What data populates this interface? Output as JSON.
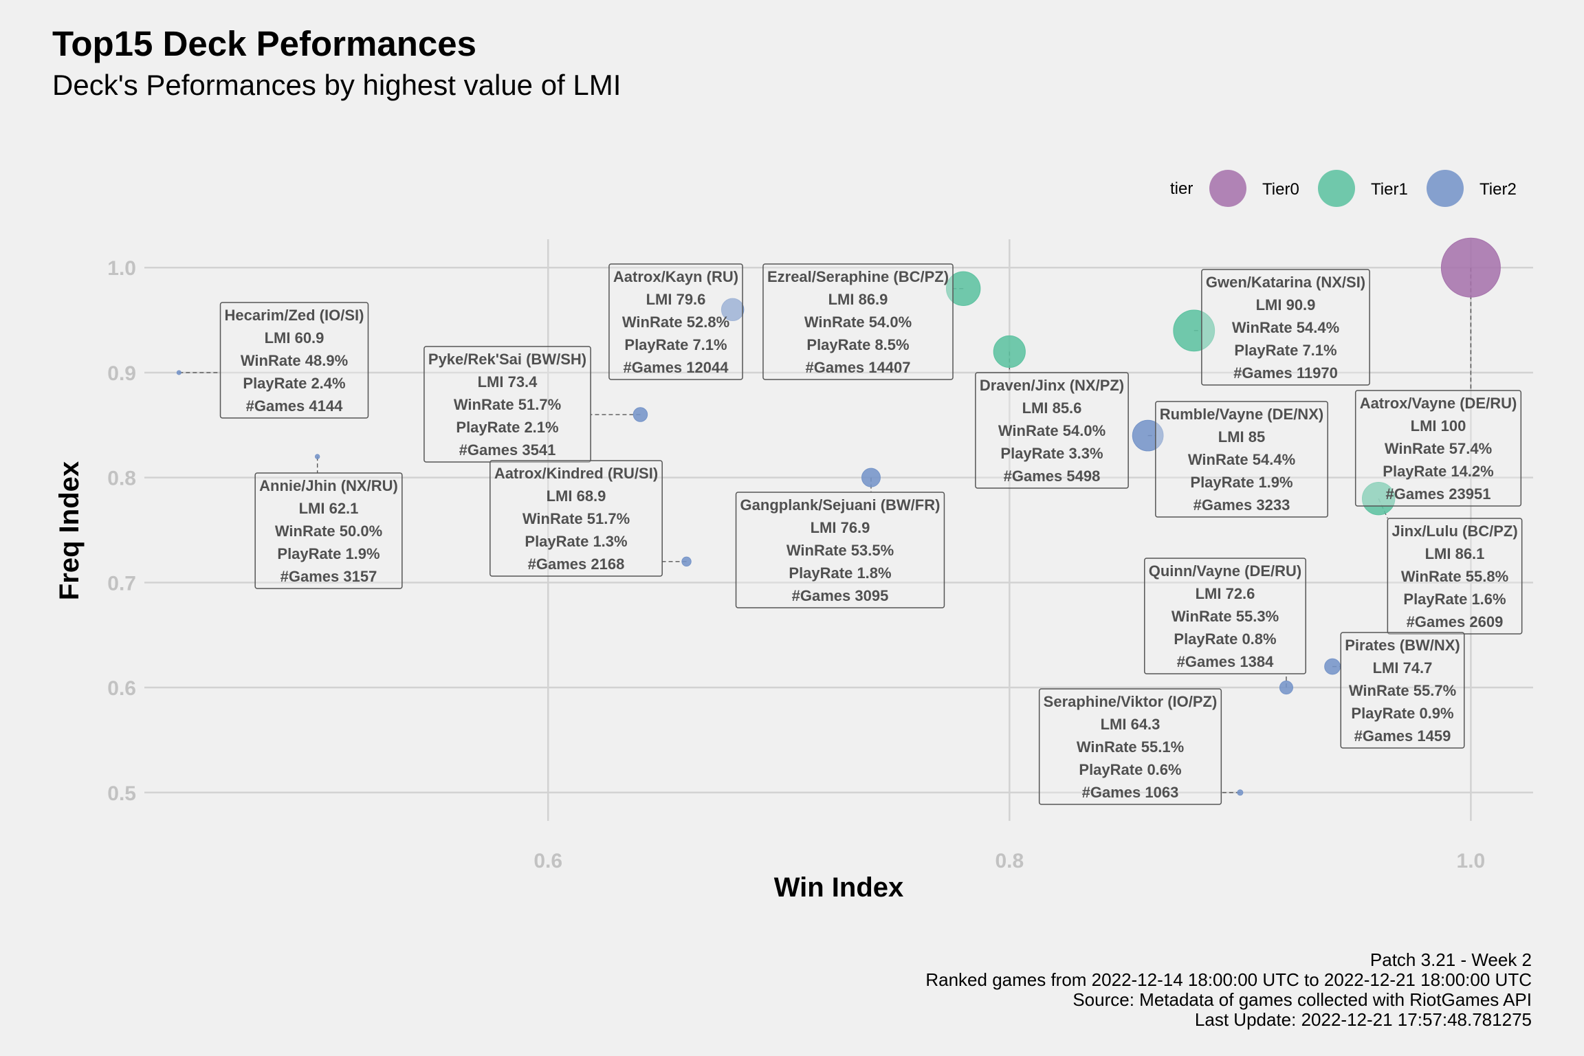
{
  "title": "Top15 Deck Peformances",
  "subtitle": "Deck's Peformances by highest value of LMI",
  "caption": [
    "Patch 3.21 - Week 2",
    "Ranked games from 2022-12-14 18:00:00 UTC to 2022-12-21 18:00:00 UTC",
    "Source: Metadata of games collected with RiotGames API",
    "Last Update: 2022-12-21 17:57:48.781275"
  ],
  "chart_data": {
    "type": "scatter",
    "xlabel": "Win Index",
    "ylabel": "Freq Index",
    "xlim": [
      0.425,
      1.027
    ],
    "ylim": [
      0.473,
      1.027
    ],
    "x_ticks": [
      0.6,
      0.8,
      1.0
    ],
    "x_tick_labels": [
      "0.6",
      "0.8",
      "1.0"
    ],
    "y_ticks": [
      0.5,
      0.6,
      0.7,
      0.8,
      0.9,
      1.0
    ],
    "y_tick_labels": [
      "0.5",
      "0.6",
      "0.7",
      "0.8",
      "0.9",
      "1.0"
    ],
    "grid": true,
    "legend": {
      "title": "tier",
      "position": "top-right",
      "entries": [
        {
          "name": "Tier0",
          "color": "#a673ac"
        },
        {
          "name": "Tier1",
          "color": "#5dc2a0"
        },
        {
          "name": "Tier2",
          "color": "#7594c8"
        }
      ]
    },
    "points": [
      {
        "deck": "Aatrox/Vayne (DE/RU)",
        "tier": "Tier0",
        "x": 1.0,
        "y": 1.0,
        "lmi": "100",
        "winrate": "57.4%",
        "playrate": "14.2%",
        "games": "23951"
      },
      {
        "deck": "Gwen/Katarina (NX/SI)",
        "tier": "Tier1",
        "x": 0.88,
        "y": 0.94,
        "lmi": "90.9",
        "winrate": "54.4%",
        "playrate": "7.1%",
        "games": "11970"
      },
      {
        "deck": "Ezreal/Seraphine (BC/PZ)",
        "tier": "Tier1",
        "x": 0.78,
        "y": 0.98,
        "lmi": "86.9",
        "winrate": "54.0%",
        "playrate": "8.5%",
        "games": "14407"
      },
      {
        "deck": "Jinx/Lulu (BC/PZ)",
        "tier": "Tier1",
        "x": 0.96,
        "y": 0.78,
        "lmi": "86.1",
        "winrate": "55.8%",
        "playrate": "1.6%",
        "games": "2609"
      },
      {
        "deck": "Draven/Jinx (NX/PZ)",
        "tier": "Tier1",
        "x": 0.8,
        "y": 0.92,
        "lmi": "85.6",
        "winrate": "54.0%",
        "playrate": "3.3%",
        "games": "5498"
      },
      {
        "deck": "Rumble/Vayne (DE/NX)",
        "tier": "Tier2",
        "x": 0.86,
        "y": 0.84,
        "lmi": "85",
        "winrate": "54.4%",
        "playrate": "1.9%",
        "games": "3233"
      },
      {
        "deck": "Aatrox/Kayn (RU)",
        "tier": "Tier2",
        "x": 0.68,
        "y": 0.96,
        "lmi": "79.6",
        "winrate": "52.8%",
        "playrate": "7.1%",
        "games": "12044"
      },
      {
        "deck": "Gangplank/Sejuani (BW/FR)",
        "tier": "Tier2",
        "x": 0.74,
        "y": 0.8,
        "lmi": "76.9",
        "winrate": "53.5%",
        "playrate": "1.8%",
        "games": "3095"
      },
      {
        "deck": "Pirates (BW/NX)",
        "tier": "Tier2",
        "x": 0.94,
        "y": 0.62,
        "lmi": "74.7",
        "winrate": "55.7%",
        "playrate": "0.9%",
        "games": "1459"
      },
      {
        "deck": "Pyke/Rek'Sai (BW/SH)",
        "tier": "Tier2",
        "x": 0.64,
        "y": 0.86,
        "lmi": "73.4",
        "winrate": "51.7%",
        "playrate": "2.1%",
        "games": "3541"
      },
      {
        "deck": "Quinn/Vayne (DE/RU)",
        "tier": "Tier2",
        "x": 0.92,
        "y": 0.6,
        "lmi": "72.6",
        "winrate": "55.3%",
        "playrate": "0.8%",
        "games": "1384"
      },
      {
        "deck": "Aatrox/Kindred (RU/SI)",
        "tier": "Tier2",
        "x": 0.66,
        "y": 0.72,
        "lmi": "68.9",
        "winrate": "51.7%",
        "playrate": "1.3%",
        "games": "2168"
      },
      {
        "deck": "Seraphine/Viktor (IO/PZ)",
        "tier": "Tier2",
        "x": 0.9,
        "y": 0.5,
        "lmi": "64.3",
        "winrate": "55.1%",
        "playrate": "0.6%",
        "games": "1063"
      },
      {
        "deck": "Annie/Jhin (NX/RU)",
        "tier": "Tier2",
        "x": 0.5,
        "y": 0.82,
        "lmi": "62.1",
        "winrate": "50.0%",
        "playrate": "1.9%",
        "games": "3157"
      },
      {
        "deck": "Hecarim/Zed (IO/SI)",
        "tier": "Tier2",
        "x": 0.44,
        "y": 0.9,
        "lmi": "60.9",
        "winrate": "48.9%",
        "playrate": "2.4%",
        "games": "4144"
      }
    ]
  }
}
